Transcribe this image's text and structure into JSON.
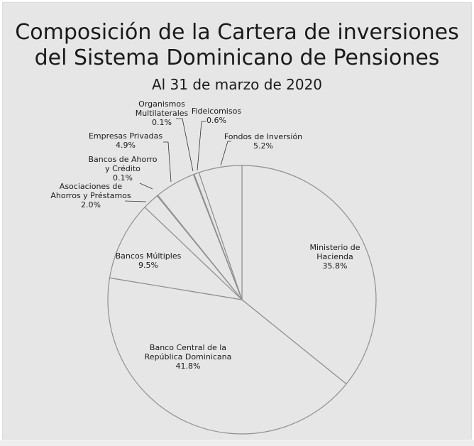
{
  "chart_data": {
    "type": "pie",
    "title_lines": [
      "Composición de la Cartera de inversiones",
      "del Sistema Dominicano de Pensiones"
    ],
    "subtitle": "Al 31 de marzo de 2020",
    "slices": [
      {
        "label_lines": [
          "Ministerio de",
          "Hacienda"
        ],
        "value": 35.8,
        "value_text": "35.8%"
      },
      {
        "label_lines": [
          "Banco Central de la",
          "República Dominicana"
        ],
        "value": 41.8,
        "value_text": "41.8%"
      },
      {
        "label_lines": [
          "Bancos Múltiples"
        ],
        "value": 9.5,
        "value_text": "9.5%"
      },
      {
        "label_lines": [
          "Asociaciones de",
          "Ahorros y Préstamos"
        ],
        "value": 2.0,
        "value_text": "2.0%"
      },
      {
        "label_lines": [
          "Bancos de Ahorro",
          "y Crédito"
        ],
        "value": 0.1,
        "value_text": "0.1%"
      },
      {
        "label_lines": [
          "Empresas Privadas"
        ],
        "value": 4.9,
        "value_text": "4.9%"
      },
      {
        "label_lines": [
          "Organismos",
          "Multilaterales"
        ],
        "value": 0.1,
        "value_text": "0.1%"
      },
      {
        "label_lines": [
          "Fideicomisos"
        ],
        "value": 0.6,
        "value_text": "0.6%"
      },
      {
        "label_lines": [
          "Fondos de Inversión"
        ],
        "value": 5.2,
        "value_text": "5.2%"
      }
    ],
    "colors": {
      "fill": "#e6e6e6",
      "stroke": "#8f8f8f",
      "text": "#1a1a1a"
    },
    "legend": "none",
    "label_placement": "inside for large slices, leader lines for small slices"
  }
}
